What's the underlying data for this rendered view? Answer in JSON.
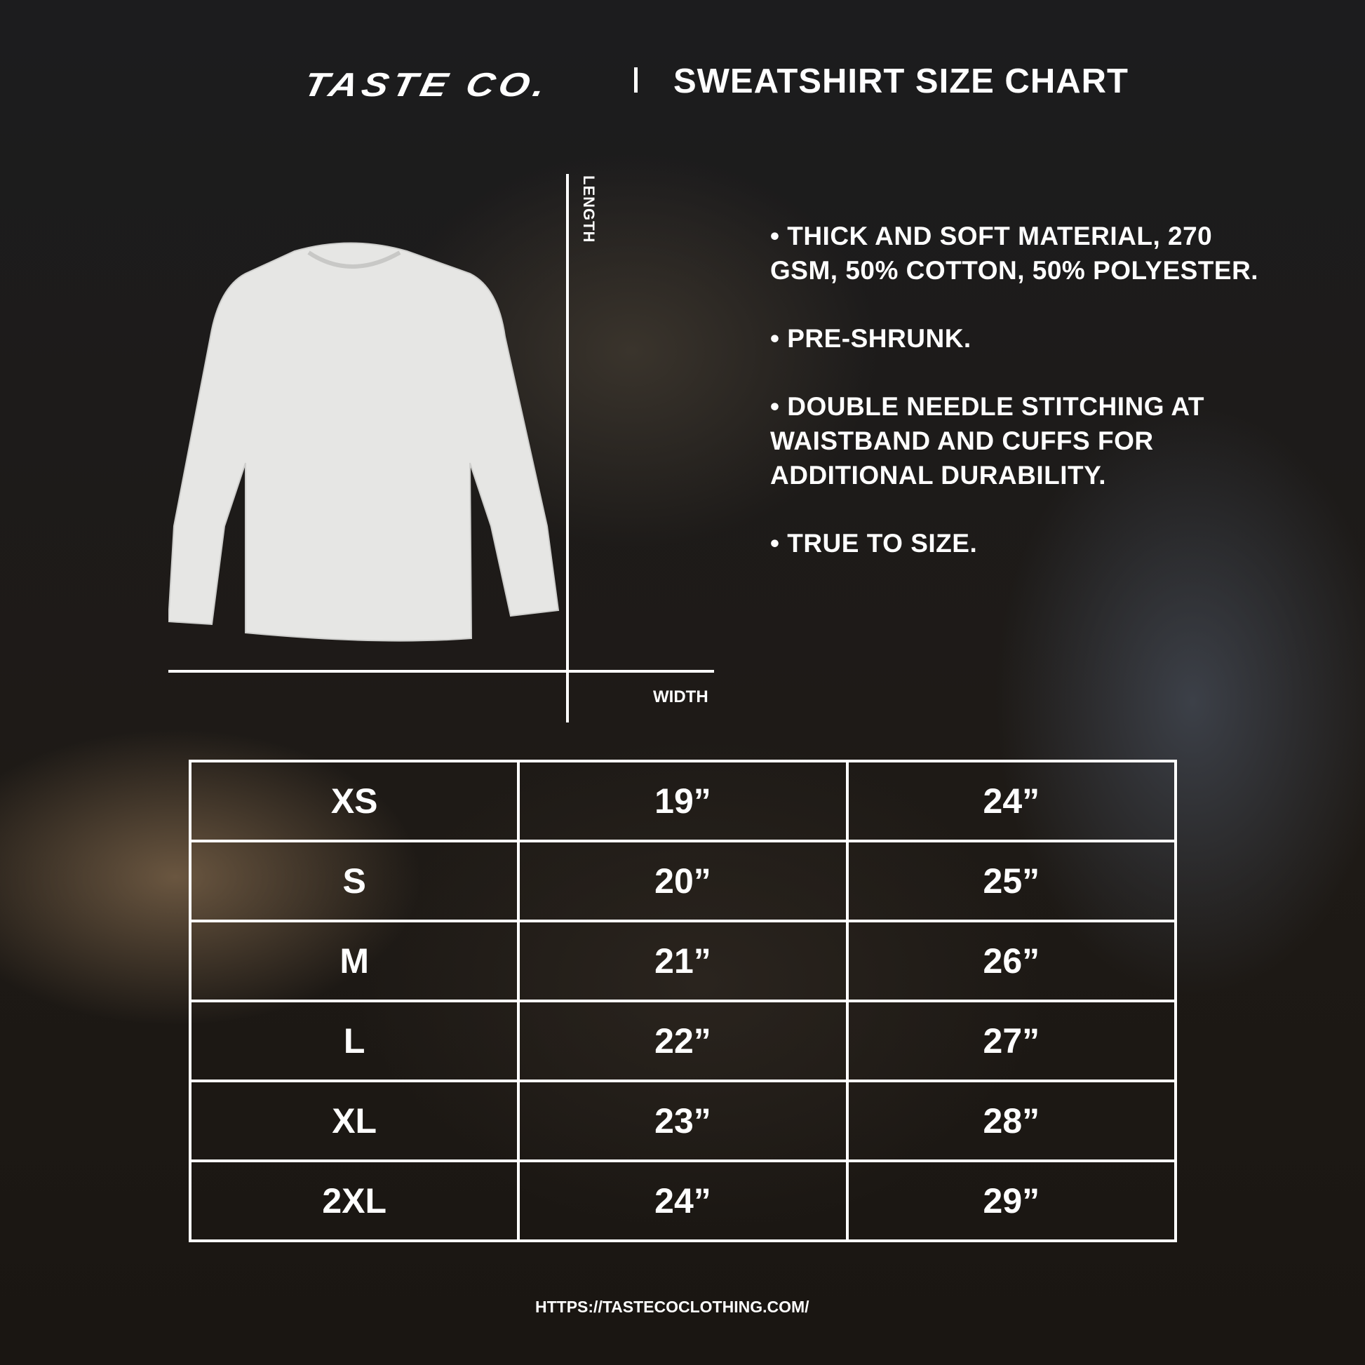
{
  "header": {
    "brand": "TASTE CO.",
    "title": "SWEATSHIRT SIZE CHART"
  },
  "diagram": {
    "length_label": "LENGTH",
    "width_label": "WIDTH"
  },
  "features": [
    "• THICK AND SOFT MATERIAL, 270 GSM, 50% COTTON, 50% POLYESTER.",
    "• PRE-SHRUNK.",
    "• DOUBLE NEEDLE STITCHING AT WAISTBAND AND CUFFS FOR ADDITIONAL DURABILITY.",
    "• TRUE TO SIZE."
  ],
  "size_table": {
    "rows": [
      [
        "XS",
        "19”",
        "24”"
      ],
      [
        "S",
        "20”",
        "25”"
      ],
      [
        "M",
        "21”",
        "26”"
      ],
      [
        "L",
        "22”",
        "27”"
      ],
      [
        "XL",
        "23”",
        "28”"
      ],
      [
        "2XL",
        "24”",
        "29”"
      ]
    ]
  },
  "footer": {
    "url": "HTTPS://TASTECOCLOTHING.COM/"
  }
}
